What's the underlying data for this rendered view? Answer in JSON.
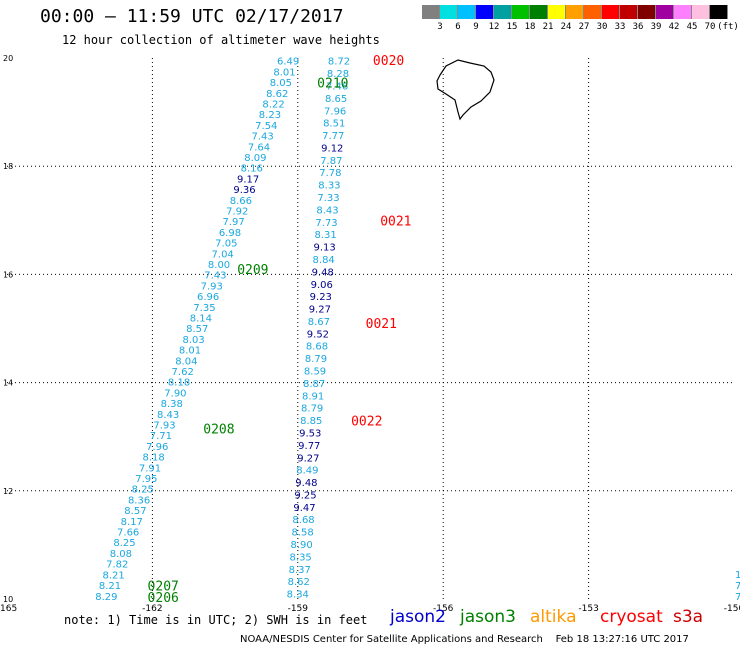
{
  "header": {
    "title": "00:00 – 11:59 UTC 02/17/2017",
    "subtitle": "12 hour collection of altimeter wave heights"
  },
  "colorbar": {
    "colors": [
      "#808080",
      "#00e0e0",
      "#00c0ff",
      "#0000ff",
      "#00a0a0",
      "#00c000",
      "#008000",
      "#ffff00",
      "#ffa000",
      "#ff6000",
      "#ff0000",
      "#c00000",
      "#800000",
      "#a000a0",
      "#ff80ff",
      "#ffc0e0",
      "#000000"
    ],
    "labels": [
      "3",
      "6",
      "9",
      "12",
      "15",
      "18",
      "21",
      "24",
      "27",
      "30",
      "33",
      "36",
      "39",
      "42",
      "45",
      "70",
      "(ft)"
    ]
  },
  "note": "note: 1) Time is in UTC; 2) SWH is in feet",
  "legend": [
    {
      "label": "jason2",
      "color": "#0000cc"
    },
    {
      "label": "jason3",
      "color": "#008000"
    },
    {
      "label": "altika",
      "color": "#ff9900"
    },
    {
      "label": "cryosat",
      "color": "#ff0000"
    },
    {
      "label": "s3a",
      "color": "#cc0000"
    }
  ],
  "footer": "NOAA/NESDIS Center for Satellite Applications and Research    Feb 18 13:27:16 UTC 2017",
  "chart_data": {
    "type": "scatter",
    "xlim": [
      -165,
      -150
    ],
    "ylim": [
      10,
      20
    ],
    "x_ticks": [
      "-165",
      "-162",
      "-159",
      "-156",
      "-153",
      "-150"
    ],
    "y_ticks": [
      "10",
      "12",
      "14",
      "16",
      "18",
      "20"
    ],
    "grid": true,
    "tracks": [
      {
        "name": "track-a",
        "start": [
          -162.95,
          10.06
        ],
        "end": [
          -159.2,
          19.95
        ],
        "values": [
          "8.29",
          "8.21",
          "8.21",
          "7.82",
          "8.08",
          "8.25",
          "7.66",
          "8.17",
          "8.57",
          "8.36",
          "8.25",
          "7.95",
          "7.91",
          "8.18",
          "7.96",
          "7.71",
          "7.93",
          "8.43",
          "8.38",
          "7.90",
          "8.18",
          "7.62",
          "8.04",
          "8.01",
          "8.03",
          "8.57",
          "8.14",
          "7.35",
          "6.96",
          "7.93",
          "7.43",
          "8.00",
          "7.04",
          "7.05",
          "6.98",
          "7.97",
          "7.92",
          "8.66",
          "9.36",
          "9.17",
          "8.16",
          "8.09",
          "7.64",
          "7.43",
          "7.54",
          "8.23",
          "8.22",
          "8.62",
          "8.05",
          "8.01",
          "6.49"
        ]
      },
      {
        "name": "track-b",
        "start": [
          -159.0,
          10.1
        ],
        "end": [
          -158.15,
          19.95
        ],
        "values": [
          "8.34",
          "8.62",
          "8.37",
          "8.35",
          "8.90",
          "8.58",
          "8.68",
          "9.47",
          "9.25",
          "9.48",
          "8.49",
          "9.27",
          "9.77",
          "9.53",
          "8.85",
          "8.79",
          "8.91",
          "8.87",
          "8.59",
          "8.79",
          "8.68",
          "9.52",
          "8.67",
          "9.27",
          "9.23",
          "9.06",
          "9.48",
          "8.84",
          "9.13",
          "8.31",
          "7.73",
          "8.43",
          "7.33",
          "8.33",
          "7.78",
          "7.87",
          "9.12",
          "7.77",
          "8.51",
          "7.96",
          "8.65",
          "7.46",
          "8.28",
          "8.72"
        ]
      }
    ],
    "edge_values": [
      "1",
      "7",
      "7"
    ],
    "time_labels": [
      {
        "label": "0206",
        "lon": -162.1,
        "lat": 10.04,
        "color": "#008000"
      },
      {
        "label": "0207",
        "lon": -162.1,
        "lat": 10.25,
        "color": "#008000"
      },
      {
        "label": "0208",
        "lon": -160.95,
        "lat": 13.15,
        "color": "#008000"
      },
      {
        "label": "0209",
        "lon": -160.25,
        "lat": 16.1,
        "color": "#008000"
      },
      {
        "label": "0210",
        "lon": -158.6,
        "lat": 19.55,
        "color": "#008000"
      },
      {
        "label": "0020",
        "lon": -157.45,
        "lat": 19.96,
        "color": "#ff0000"
      },
      {
        "label": "0021",
        "lon": -157.3,
        "lat": 17.0,
        "color": "#ff0000"
      },
      {
        "label": "0021",
        "lon": -157.6,
        "lat": 15.1,
        "color": "#ff0000"
      },
      {
        "label": "0022",
        "lon": -157.9,
        "lat": 13.3,
        "color": "#ff0000"
      }
    ]
  }
}
